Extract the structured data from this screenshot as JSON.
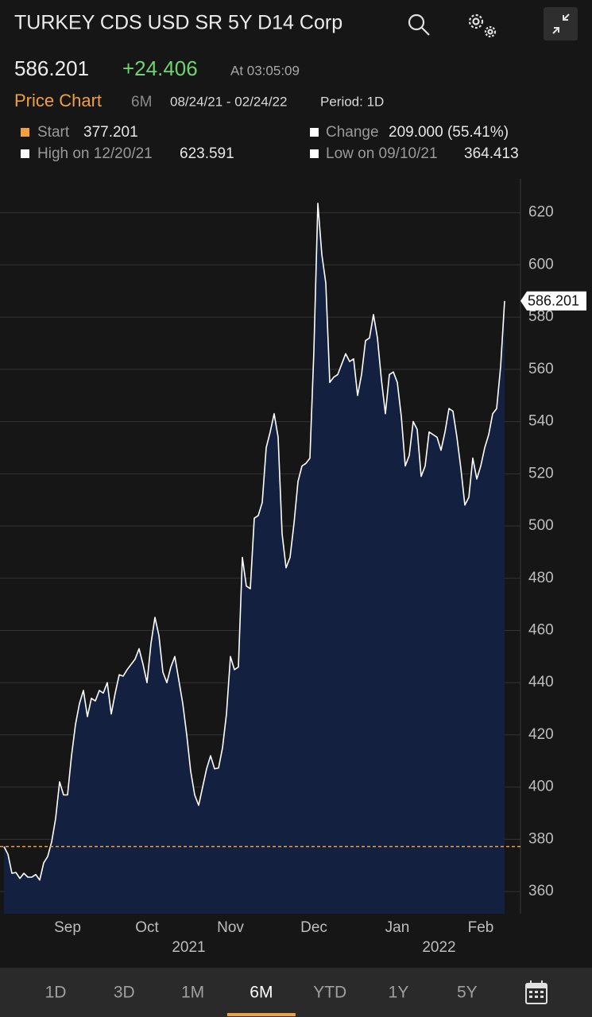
{
  "header": {
    "title": "TURKEY CDS USD SR 5Y D14 Corp"
  },
  "quote": {
    "last": "586.201",
    "change": "+24.406",
    "time": "At 03:05:09"
  },
  "subheader": {
    "label": "Price Chart",
    "range_button": "6M",
    "range": "08/24/21 - 02/24/22",
    "period": "Period: 1D"
  },
  "stats": {
    "start_label": "Start",
    "start": "377.201",
    "change_label": "Change",
    "change": "209.000 (55.41%)",
    "high_label": "High on 12/20/21",
    "high": "623.591",
    "low_label": "Low on 09/10/21",
    "low": "364.413"
  },
  "chart_data": {
    "type": "area",
    "color": "#13203f",
    "line_color": "#ffffff",
    "categories": [
      null,
      null,
      null,
      null,
      null,
      null,
      null,
      null,
      null,
      null,
      null,
      null,
      null,
      null,
      null,
      null,
      "Sep",
      null,
      null,
      null,
      null,
      null,
      null,
      null,
      null,
      null,
      null,
      null,
      null,
      null,
      null,
      null,
      null,
      null,
      null,
      null,
      "Oct",
      null,
      null,
      null,
      null,
      null,
      null,
      null,
      null,
      null,
      null,
      null,
      null,
      null,
      null,
      null,
      null,
      null,
      null,
      null,
      null,
      "Nov",
      null,
      null,
      null,
      null,
      null,
      null,
      null,
      null,
      null,
      null,
      null,
      null,
      null,
      null,
      null,
      null,
      null,
      null,
      null,
      null,
      "Dec",
      null,
      null,
      null,
      null,
      null,
      null,
      null,
      null,
      null,
      null,
      null,
      null,
      null,
      null,
      null,
      null,
      null,
      null,
      null,
      null,
      "Jan",
      null,
      null,
      null,
      null,
      null,
      null,
      null,
      null,
      null,
      null,
      null,
      null,
      null,
      null,
      null,
      null,
      null,
      null,
      null,
      null,
      "Feb",
      null,
      null,
      null,
      null,
      null,
      null
    ],
    "values": [
      377.201,
      374.3,
      367,
      367.3,
      365,
      367,
      365.5,
      365.5,
      366.5,
      364.413,
      371,
      373.4,
      379,
      388,
      402,
      397,
      397,
      412,
      424,
      432,
      437,
      427,
      434,
      433,
      437,
      436,
      440,
      428,
      436,
      443,
      442.5,
      445,
      447,
      449,
      453,
      447,
      440,
      455,
      465,
      458,
      444,
      440,
      446,
      450,
      441,
      432,
      420,
      406,
      397,
      393,
      400,
      407,
      412,
      407,
      407.3,
      415,
      428,
      450,
      445,
      446,
      488,
      477,
      476,
      503,
      504,
      509,
      530,
      536,
      543,
      534,
      497,
      484,
      488,
      501,
      517,
      523,
      524,
      526,
      567,
      623.591,
      604,
      593,
      555,
      557,
      558,
      562,
      566,
      563,
      564,
      550,
      558,
      571,
      572,
      581,
      572,
      556,
      543,
      558,
      559,
      555,
      542,
      523,
      527,
      540,
      537,
      519,
      523,
      536,
      535,
      534,
      529,
      536,
      545,
      544,
      534,
      522,
      508,
      511,
      526,
      518,
      523,
      530,
      535,
      543,
      545,
      561,
      586.201
    ],
    "ylim": [
      351.5,
      633
    ],
    "yticks": [
      360,
      380,
      400,
      420,
      440,
      460,
      480,
      500,
      520,
      540,
      560,
      580,
      600,
      620
    ],
    "reference_line": 377.201,
    "reference_color": "#f0a040",
    "year_labels": [
      "2021",
      "2022"
    ]
  },
  "tabs": [
    "1D",
    "3D",
    "1M",
    "6M",
    "YTD",
    "1Y",
    "5Y"
  ],
  "active_tab": "6M"
}
